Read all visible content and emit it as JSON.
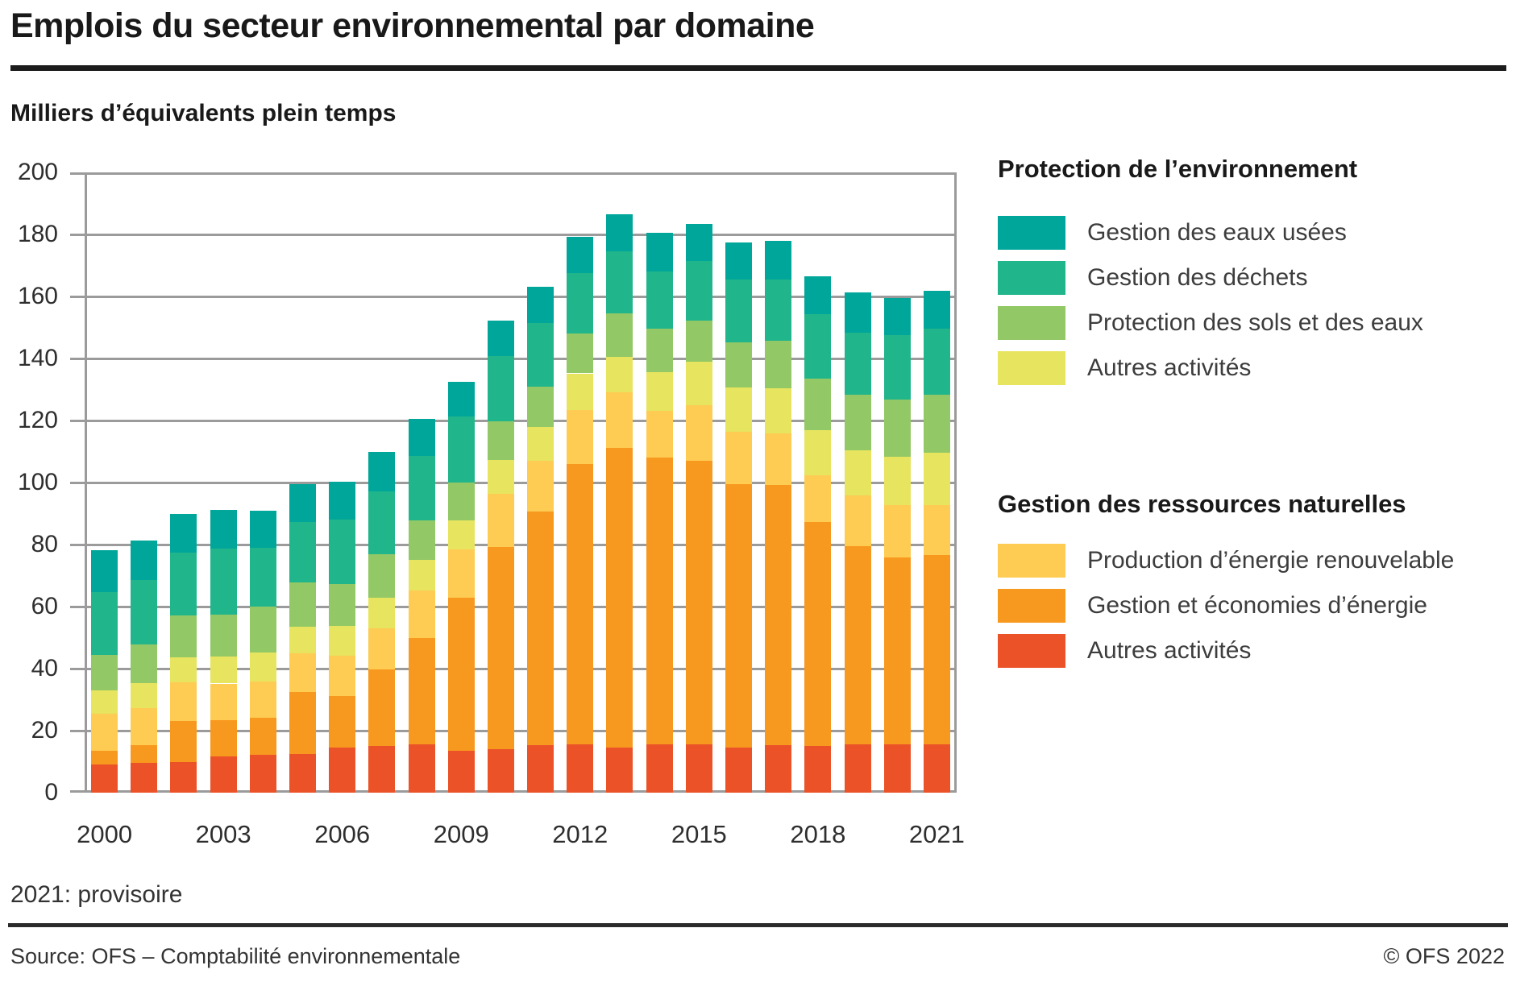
{
  "header": {
    "title": "Emplois du secteur environnemental par domaine",
    "subtitle": "Milliers d’équivalents plein temps"
  },
  "footnote": "2021: provisoire",
  "footer": {
    "source": "Source: OFS – Comptabilité environnementale",
    "copyright": "© OFS 2022"
  },
  "palette": {
    "eaux_usees": "#00a699",
    "gestion_dechets": "#21b58b",
    "protection_sols": "#92c865",
    "autres_protection": "#e7e45f",
    "prod_renouvelable": "#fecb53",
    "gestion_energie": "#f8991f",
    "autres_ressources": "#eb5228",
    "grid": "#9b9b9b"
  },
  "legend": {
    "groups": [
      {
        "title": "Protection de l’environnement",
        "items": [
          {
            "label": "Gestion des eaux usées",
            "color_key": "eaux_usees"
          },
          {
            "label": "Gestion des déchets",
            "color_key": "gestion_dechets"
          },
          {
            "label": "Protection des sols et des eaux",
            "color_key": "protection_sols"
          },
          {
            "label": "Autres activités",
            "color_key": "autres_protection"
          }
        ]
      },
      {
        "title": "Gestion des ressources naturelles",
        "items": [
          {
            "label": "Production d’énergie renouvelable",
            "color_key": "prod_renouvelable"
          },
          {
            "label": "Gestion et économies d’énergie",
            "color_key": "gestion_energie"
          },
          {
            "label": "Autres activités",
            "color_key": "autres_ressources"
          }
        ]
      }
    ]
  },
  "chart_data": {
    "type": "bar",
    "stacked": true,
    "title": "Emplois du secteur environnemental par domaine",
    "ylabel": "Milliers d’équivalents plein temps",
    "ylim": [
      0,
      200
    ],
    "y_ticks": [
      0,
      20,
      40,
      60,
      80,
      100,
      120,
      140,
      160,
      180,
      200
    ],
    "grid": true,
    "legend_position": "right",
    "x": [
      2000,
      2001,
      2002,
      2003,
      2004,
      2005,
      2006,
      2007,
      2008,
      2009,
      2010,
      2011,
      2012,
      2013,
      2014,
      2015,
      2016,
      2017,
      2018,
      2019,
      2020,
      2021
    ],
    "x_ticks": [
      {
        "index": 0,
        "label": "2000"
      },
      {
        "index": 3,
        "label": "2003"
      },
      {
        "index": 6,
        "label": "2006"
      },
      {
        "index": 9,
        "label": "2009"
      },
      {
        "index": 12,
        "label": "2012"
      },
      {
        "index": 15,
        "label": "2015"
      },
      {
        "index": 18,
        "label": "2018"
      },
      {
        "index": 21,
        "label": "2021"
      }
    ],
    "stack_order_note": "series listed bottom-to-top of the stacked bars; values in thousands of full-time equivalents",
    "series": [
      {
        "name": "Autres activités (ressources naturelles)",
        "color_key": "autres_ressources",
        "values": [
          9.0,
          9.5,
          10.0,
          11.6,
          12.3,
          12.5,
          14.5,
          15.0,
          15.5,
          13.5,
          14.0,
          15.2,
          15.7,
          14.6,
          15.5,
          15.5,
          14.5,
          15.3,
          15.1,
          15.5,
          15.5,
          15.5
        ]
      },
      {
        "name": "Gestion et économies d’énergie",
        "color_key": "gestion_energie",
        "values": [
          4.6,
          5.8,
          13.2,
          11.8,
          11.9,
          19.9,
          16.7,
          24.7,
          34.3,
          49.3,
          65.2,
          75.4,
          90.4,
          96.6,
          92.5,
          91.4,
          84.9,
          84.0,
          72.2,
          64.1,
          60.4,
          61.1
        ]
      },
      {
        "name": "Production d’énergie renouvelable",
        "color_key": "prod_renouvelable",
        "values": [
          11.9,
          11.9,
          12.3,
          11.8,
          11.6,
          12.5,
          13.0,
          13.4,
          15.3,
          15.7,
          17.2,
          16.4,
          17.3,
          17.8,
          15.0,
          18.1,
          16.9,
          16.5,
          15.0,
          16.2,
          16.8,
          16.2
        ]
      },
      {
        "name": "Autres activités (protection de l’environnement)",
        "color_key": "autres_protection",
        "values": [
          7.6,
          8.0,
          8.1,
          8.7,
          9.4,
          8.5,
          9.6,
          9.8,
          10.0,
          9.3,
          10.9,
          10.8,
          11.8,
          11.6,
          12.5,
          13.9,
          14.4,
          14.5,
          14.5,
          14.7,
          15.5,
          16.9
        ]
      },
      {
        "name": "Protection des sols et des eaux",
        "color_key": "protection_sols",
        "values": [
          11.4,
          12.6,
          13.6,
          13.6,
          14.7,
          14.3,
          13.6,
          14.0,
          12.7,
          12.3,
          12.4,
          13.1,
          12.8,
          13.9,
          14.0,
          13.4,
          14.6,
          15.5,
          16.8,
          17.7,
          18.5,
          18.5
        ]
      },
      {
        "name": "Gestion des déchets",
        "color_key": "gestion_dechets",
        "values": [
          20.2,
          20.8,
          20.1,
          21.3,
          19.1,
          19.5,
          20.6,
          20.3,
          20.8,
          21.1,
          21.2,
          20.6,
          19.5,
          20.1,
          18.5,
          19.2,
          20.2,
          19.7,
          20.7,
          20.0,
          20.9,
          21.5
        ]
      },
      {
        "name": "Gestion des eaux usées",
        "color_key": "eaux_usees",
        "values": [
          13.4,
          12.8,
          12.5,
          12.3,
          12.0,
          12.3,
          12.2,
          12.6,
          12.0,
          11.4,
          11.3,
          11.5,
          11.8,
          11.9,
          12.5,
          12.0,
          12.0,
          12.3,
          12.2,
          13.0,
          12.0,
          12.0
        ]
      }
    ]
  }
}
